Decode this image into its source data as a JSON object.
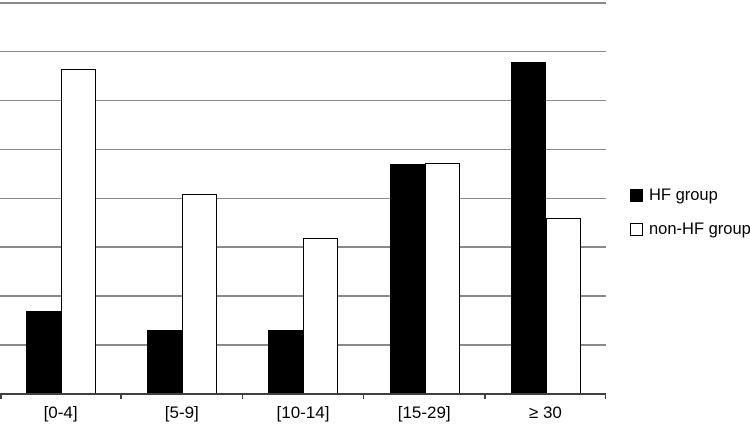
{
  "chart_data": {
    "type": "bar",
    "title": "",
    "categories": [
      "[0-4]",
      "[5-9]",
      "[10-14]",
      "[15-29]",
      "≥ 30"
    ],
    "series": [
      {
        "name": "HF group",
        "fill": "#000000",
        "border": "#000000",
        "values": [
          1.7,
          1.3,
          1.3,
          4.7,
          6.8
        ]
      },
      {
        "name": "non-HF group",
        "fill": "#ffffff",
        "border": "#000000",
        "values": [
          6.65,
          4.1,
          3.2,
          4.73,
          3.6
        ]
      }
    ],
    "value_note": "y-axis tick labels are not visible in the image; values are expressed in horizontal-gridline units measured from the baseline",
    "xlabel": "",
    "ylabel": "",
    "ylim": [
      0,
      8
    ],
    "gridline_step": 1,
    "grid": true,
    "legend_position": "right",
    "colors": {
      "gridline": "#8a8a8a",
      "axis": "#404040",
      "background": "#ffffff",
      "hf_bar": "#000000",
      "non_hf_bar_fill": "#ffffff",
      "non_hf_bar_border": "#000000"
    }
  }
}
